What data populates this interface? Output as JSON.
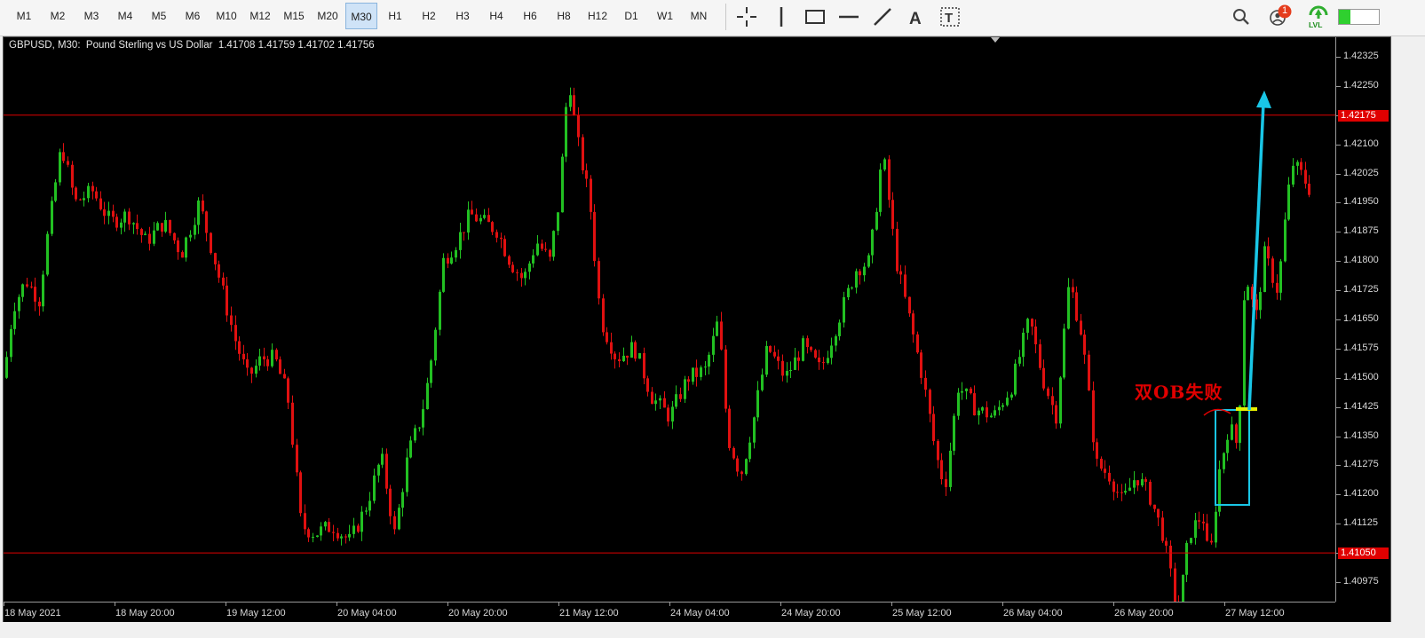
{
  "toolbar": {
    "timeframes": [
      "M1",
      "M2",
      "M3",
      "M4",
      "M5",
      "M6",
      "M10",
      "M12",
      "M15",
      "M20",
      "M30",
      "H1",
      "H2",
      "H3",
      "H4",
      "H6",
      "H8",
      "H12",
      "D1",
      "W1",
      "MN"
    ],
    "active_timeframe": "M30",
    "drawing_tools": [
      "crosshair-icon",
      "vertical-line-icon",
      "rectangle-icon",
      "horizontal-line-icon",
      "trendline-icon",
      "text-icon",
      "text-label-icon"
    ],
    "notification_count": "1",
    "lvl_label": "LVL"
  },
  "chart": {
    "header": "GBPUSD, M30:  Pound Sterling vs US Dollar  1.41708 1.41759 1.41702 1.41756",
    "annotation": "双OB失败",
    "hline_upper_label": "1.42175",
    "hline_lower_label": "1.41050",
    "colors": {
      "background": "#000000",
      "bull": "#22c022",
      "bear": "#e01010",
      "hline": "#e00000",
      "arrow": "#19c6e6",
      "box": "#19c6e6",
      "marker": "#e8f000"
    }
  },
  "chart_data": {
    "type": "candlestick",
    "symbol": "GBPUSD",
    "timeframe": "M30",
    "ylim": [
      1.40925,
      1.42375
    ],
    "y_ticks": [
      "1.42325",
      "1.42250",
      "1.42175",
      "1.42100",
      "1.42025",
      "1.41950",
      "1.41875",
      "1.41800",
      "1.41725",
      "1.41650",
      "1.41575",
      "1.41500",
      "1.41425",
      "1.41350",
      "1.41275",
      "1.41200",
      "1.41125",
      "1.41050",
      "1.40975"
    ],
    "x_ticks": [
      "18 May 2021",
      "18 May 20:00",
      "19 May 12:00",
      "20 May 04:00",
      "20 May 20:00",
      "21 May 12:00",
      "24 May 04:00",
      "24 May 20:00",
      "25 May 12:00",
      "26 May 04:00",
      "26 May 20:00",
      "27 May 12:00"
    ],
    "horizontal_lines": [
      1.42175,
      1.4105
    ],
    "price_path": [
      [
        0,
        1.415
      ],
      [
        10,
        1.4168
      ],
      [
        25,
        1.4175
      ],
      [
        40,
        1.417
      ],
      [
        50,
        1.4188
      ],
      [
        65,
        1.421
      ],
      [
        80,
        1.4195
      ],
      [
        100,
        1.4198
      ],
      [
        120,
        1.419
      ],
      [
        140,
        1.4192
      ],
      [
        160,
        1.4185
      ],
      [
        180,
        1.419
      ],
      [
        200,
        1.4182
      ],
      [
        220,
        1.4195
      ],
      [
        240,
        1.4178
      ],
      [
        260,
        1.416
      ],
      [
        275,
        1.415
      ],
      [
        290,
        1.4155
      ],
      [
        305,
        1.4155
      ],
      [
        320,
        1.4145
      ],
      [
        335,
        1.4112
      ],
      [
        350,
        1.411
      ],
      [
        370,
        1.4112
      ],
      [
        390,
        1.4108
      ],
      [
        410,
        1.4118
      ],
      [
        425,
        1.413
      ],
      [
        440,
        1.411
      ],
      [
        455,
        1.413
      ],
      [
        470,
        1.414
      ],
      [
        480,
        1.4152
      ],
      [
        495,
        1.418
      ],
      [
        510,
        1.4185
      ],
      [
        525,
        1.4192
      ],
      [
        540,
        1.419
      ],
      [
        555,
        1.4188
      ],
      [
        570,
        1.418
      ],
      [
        585,
        1.4175
      ],
      [
        600,
        1.4185
      ],
      [
        615,
        1.418
      ],
      [
        625,
        1.4195
      ],
      [
        636,
        1.4228
      ],
      [
        645,
        1.4212
      ],
      [
        660,
        1.4195
      ],
      [
        672,
        1.4165
      ],
      [
        690,
        1.4155
      ],
      [
        710,
        1.4158
      ],
      [
        730,
        1.4145
      ],
      [
        750,
        1.414
      ],
      [
        770,
        1.415
      ],
      [
        790,
        1.4152
      ],
      [
        805,
        1.4165
      ],
      [
        815,
        1.4135
      ],
      [
        830,
        1.4125
      ],
      [
        845,
        1.414
      ],
      [
        860,
        1.4158
      ],
      [
        880,
        1.415
      ],
      [
        900,
        1.4158
      ],
      [
        920,
        1.4152
      ],
      [
        940,
        1.4165
      ],
      [
        960,
        1.4178
      ],
      [
        975,
        1.418
      ],
      [
        990,
        1.4208
      ],
      [
        1005,
        1.418
      ],
      [
        1020,
        1.4165
      ],
      [
        1035,
        1.415
      ],
      [
        1050,
        1.413
      ],
      [
        1060,
        1.4122
      ],
      [
        1075,
        1.4148
      ],
      [
        1095,
        1.4142
      ],
      [
        1115,
        1.414
      ],
      [
        1135,
        1.4148
      ],
      [
        1155,
        1.4165
      ],
      [
        1170,
        1.415
      ],
      [
        1185,
        1.414
      ],
      [
        1200,
        1.4175
      ],
      [
        1215,
        1.416
      ],
      [
        1230,
        1.4128
      ],
      [
        1245,
        1.4125
      ],
      [
        1260,
        1.4118
      ],
      [
        1275,
        1.4125
      ],
      [
        1290,
        1.412
      ],
      [
        1305,
        1.411
      ],
      [
        1315,
        1.4098
      ],
      [
        1322,
        1.4088
      ],
      [
        1335,
        1.411
      ],
      [
        1350,
        1.4115
      ],
      [
        1358,
        1.4102
      ],
      [
        1368,
        1.4125
      ],
      [
        1380,
        1.4138
      ],
      [
        1390,
        1.4132
      ],
      [
        1398,
        1.4178
      ],
      [
        1410,
        1.4165
      ],
      [
        1420,
        1.4182
      ],
      [
        1435,
        1.4172
      ],
      [
        1445,
        1.4195
      ],
      [
        1452,
        1.4205
      ],
      [
        1462,
        1.4202
      ],
      [
        1472,
        1.4198
      ]
    ]
  }
}
